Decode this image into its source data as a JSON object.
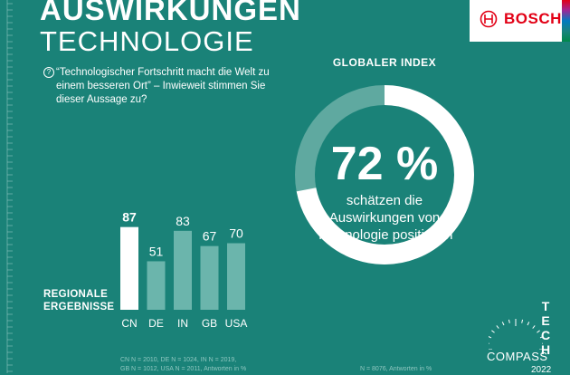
{
  "header": {
    "title_line1": "AUSWIRKUNGEN",
    "title_line2": "TECHNOLOGIE"
  },
  "question": {
    "icon": "question-circle-icon",
    "text": "“Technologischer Fortschritt macht die Welt zu einem besseren Ort” – Inwieweit stimmen Sie dieser Aussage zu?"
  },
  "logo": {
    "text": "BOSCH",
    "color": "#e20015",
    "icon": "bosch-ring-icon"
  },
  "global_index": {
    "label": "GLOBALER INDEX",
    "value_text": "72 %",
    "value": 72,
    "caption": "schätzen die Auswirkungen von Technologie positiv ein"
  },
  "regional": {
    "label_line1": "REGIONALE",
    "label_line2": "ERGEBNISSE"
  },
  "footnotes": {
    "left_line1": "CN N = 2010, DE N = 1024, IN N = 2019,",
    "left_line2": "GB N = 1012, USA N = 2011, Antworten in %",
    "right": "N = 8076, Antworten in %"
  },
  "branding": {
    "tech_letters": [
      "T",
      "E",
      "C",
      "H"
    ],
    "compass": "COMPASS",
    "year": "2022"
  },
  "colors": {
    "background": "#1a8278",
    "bar_highlight": "#ffffff",
    "bar": "#6bb5ac",
    "donut_track": "#5fa9a0",
    "donut_fill": "#ffffff"
  },
  "chart_data": {
    "type": "bar",
    "categories": [
      "CN",
      "DE",
      "IN",
      "GB",
      "USA"
    ],
    "values": [
      87,
      51,
      83,
      67,
      70
    ],
    "highlight_index": 0,
    "ylim": [
      0,
      100
    ]
  }
}
